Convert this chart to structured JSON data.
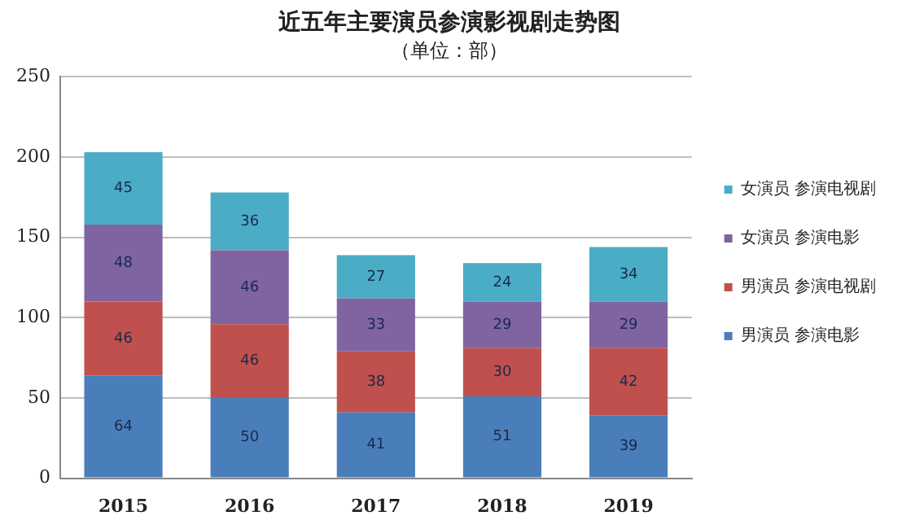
{
  "chart_data": {
    "type": "bar",
    "title": "近五年主要演员参演影视剧走势图",
    "subtitle": "（单位：部）",
    "categories": [
      "2015",
      "2016",
      "2017",
      "2018",
      "2019"
    ],
    "series": [
      {
        "name": "男演员 参演电影",
        "color": "#4a7ebb",
        "values": [
          64,
          50,
          41,
          51,
          39
        ]
      },
      {
        "name": "男演员 参演电视剧",
        "color": "#c0504d",
        "values": [
          46,
          46,
          38,
          30,
          42
        ]
      },
      {
        "name": "女演员 参演电影",
        "color": "#8064a2",
        "values": [
          48,
          46,
          33,
          29,
          29
        ]
      },
      {
        "name": "女演员 参演电视剧",
        "color": "#4bacc6",
        "values": [
          45,
          36,
          27,
          24,
          34
        ]
      }
    ],
    "stacked": true,
    "ylim": [
      0,
      250
    ],
    "yticks": [
      0,
      50,
      100,
      150,
      200,
      250
    ],
    "grid": "y",
    "legend": "right",
    "data_labels": true
  }
}
